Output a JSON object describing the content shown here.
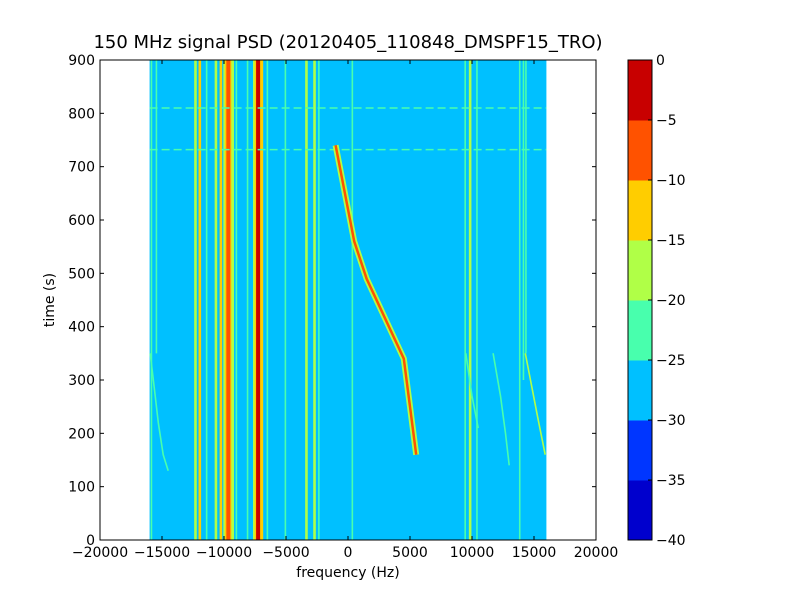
{
  "chart_data": {
    "type": "heatmap",
    "title": "150 MHz signal PSD (20120405_110848_DMSPF15_TRO)",
    "xlabel": "frequency (Hz)",
    "ylabel": "time (s)",
    "xlim": [
      -20000,
      20000
    ],
    "ylim": [
      0,
      900
    ],
    "x_ticks": [
      -20000,
      -15000,
      -10000,
      -5000,
      0,
      5000,
      10000,
      15000,
      20000
    ],
    "x_tick_labels": [
      "−20000",
      "−15000",
      "−10000",
      "−5000",
      "0",
      "5000",
      "10000",
      "15000",
      "20000"
    ],
    "y_ticks": [
      0,
      100,
      200,
      300,
      400,
      500,
      600,
      700,
      800,
      900
    ],
    "y_tick_labels": [
      "0",
      "100",
      "200",
      "300",
      "400",
      "500",
      "600",
      "700",
      "800",
      "900"
    ],
    "data_extent_x": [
      -16000,
      16000
    ],
    "background_level": -27.5,
    "colorbar": {
      "levels": [
        -40,
        -35,
        -30,
        -25,
        -20,
        -15,
        -10,
        -5,
        0
      ],
      "tick_labels": [
        "−40",
        "−35",
        "−30",
        "−25",
        "−20",
        "−15",
        "−10",
        "−5",
        "0"
      ],
      "colors": [
        "#0000cd",
        "#0036ff",
        "#00c0ff",
        "#48ffad",
        "#b0ff47",
        "#ffcd00",
        "#ff5200",
        "#c80000"
      ]
    },
    "vertical_lines": [
      {
        "x": -15850,
        "y0": 0,
        "y1": 900,
        "level": -22.5
      },
      {
        "x": -15450,
        "y0": 350,
        "y1": 900,
        "level": -22.5
      },
      {
        "x": -12300,
        "y0": 0,
        "y1": 900,
        "level": -17.5
      },
      {
        "x": -11950,
        "y0": 0,
        "y1": 900,
        "level": -12.5
      },
      {
        "x": -11400,
        "y0": 0,
        "y1": 900,
        "level": -22.5
      },
      {
        "x": -10650,
        "y0": 0,
        "y1": 900,
        "level": -17.5
      },
      {
        "x": -10250,
        "y0": 0,
        "y1": 900,
        "level": -12.5
      },
      {
        "x": -9650,
        "y0": 0,
        "y1": 900,
        "level": -7.5
      },
      {
        "x": -9300,
        "y0": 0,
        "y1": 900,
        "level": -17.5
      },
      {
        "x": -9000,
        "y0": 0,
        "y1": 900,
        "level": -22.5
      },
      {
        "x": -8100,
        "y0": 0,
        "y1": 900,
        "level": -22.5
      },
      {
        "x": -7550,
        "y0": 0,
        "y1": 900,
        "level": -12.5
      },
      {
        "x": -7250,
        "y0": 0,
        "y1": 900,
        "level": -2.5
      },
      {
        "x": -6950,
        "y0": 0,
        "y1": 900,
        "level": -12.5
      },
      {
        "x": -6500,
        "y0": 0,
        "y1": 900,
        "level": -22.5
      },
      {
        "x": -5050,
        "y0": 0,
        "y1": 900,
        "level": -22.5
      },
      {
        "x": -3350,
        "y0": 0,
        "y1": 900,
        "level": -17.5
      },
      {
        "x": -2700,
        "y0": 0,
        "y1": 900,
        "level": -17.5
      },
      {
        "x": -2350,
        "y0": 0,
        "y1": 900,
        "level": -22.5
      },
      {
        "x": 350,
        "y0": 0,
        "y1": 900,
        "level": -22.5
      },
      {
        "x": 9450,
        "y0": 0,
        "y1": 900,
        "level": -22.5
      },
      {
        "x": 9850,
        "y0": 0,
        "y1": 900,
        "level": -17.5
      },
      {
        "x": 10400,
        "y0": 0,
        "y1": 900,
        "level": -22.5
      },
      {
        "x": 13850,
        "y0": 0,
        "y1": 900,
        "level": -22.5
      },
      {
        "x": 14150,
        "y0": 300,
        "y1": 900,
        "level": -22.5
      },
      {
        "x": 14350,
        "y0": 350,
        "y1": 900,
        "level": -22.5
      }
    ],
    "traces": [
      {
        "level": -7.5,
        "points": [
          [
            -1000,
            740
          ],
          [
            -500,
            680
          ],
          [
            0,
            620
          ],
          [
            500,
            560
          ],
          [
            1500,
            490
          ],
          [
            2500,
            440
          ],
          [
            3500,
            390
          ],
          [
            4500,
            340
          ],
          [
            5000,
            250
          ],
          [
            5500,
            160
          ]
        ]
      },
      {
        "level": -22.5,
        "points": [
          [
            -15950,
            350
          ],
          [
            -15600,
            280
          ],
          [
            -15300,
            220
          ],
          [
            -14900,
            160
          ],
          [
            -14500,
            130
          ]
        ]
      },
      {
        "level": -22.5,
        "points": [
          [
            9500,
            350
          ],
          [
            10000,
            270
          ],
          [
            10500,
            210
          ]
        ]
      },
      {
        "level": -22.5,
        "points": [
          [
            11700,
            350
          ],
          [
            12300,
            270
          ],
          [
            12700,
            200
          ],
          [
            13000,
            140
          ]
        ]
      },
      {
        "level": -17.5,
        "points": [
          [
            14300,
            350
          ],
          [
            14800,
            290
          ],
          [
            15300,
            230
          ],
          [
            15900,
            160
          ]
        ]
      }
    ],
    "horizontal_dashes": [
      {
        "y": 810,
        "x0": -16000,
        "x1": 16000,
        "level": -22.5
      },
      {
        "y": 732,
        "x0": -16000,
        "x1": 16000,
        "level": -22.5
      }
    ]
  }
}
